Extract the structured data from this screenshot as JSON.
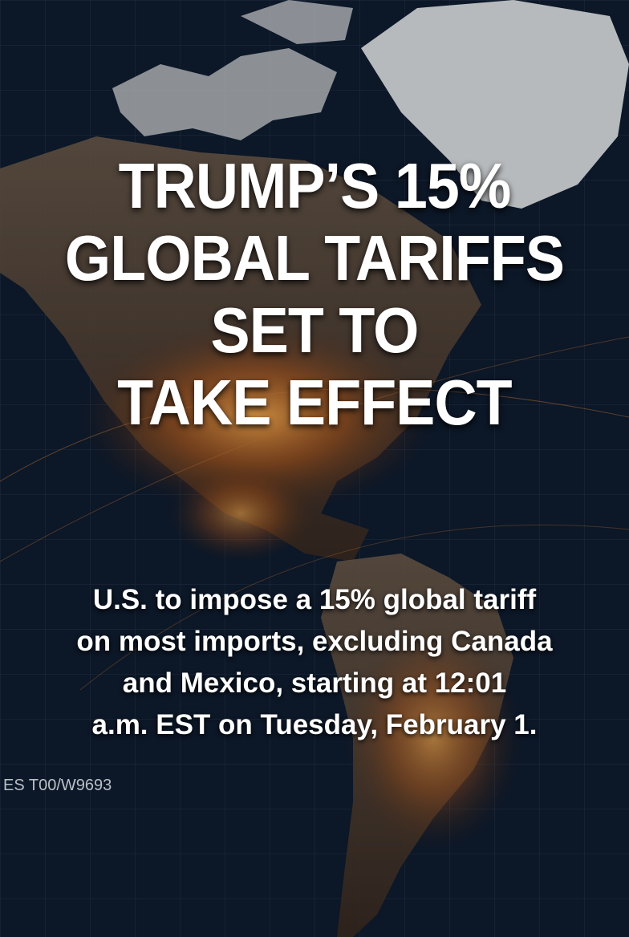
{
  "headline": {
    "lines": [
      "TRUMP’S 15%",
      "GLOBAL TARIFFS",
      "SET TO",
      "TAKE EFFECT"
    ]
  },
  "subheadline": {
    "lines": [
      "U.S. to impose a 15% global tariff",
      "on most imports, excluding Canada",
      "and Mexico, starting at 12:01",
      "a.m. EST on Tuesday, February 1."
    ]
  },
  "watermark": "ES T00/W9693"
}
